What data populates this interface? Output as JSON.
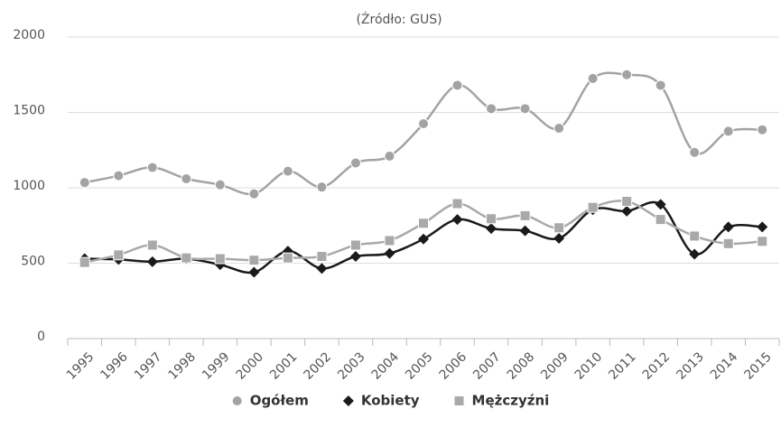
{
  "chart_data": {
    "type": "line",
    "title": "(Źródło: GUS)",
    "categories": [
      "1995",
      "1996",
      "1997",
      "1998",
      "1999",
      "2000",
      "2001",
      "2002",
      "2003",
      "2004",
      "2005",
      "2006",
      "2007",
      "2008",
      "2009",
      "2010",
      "2011",
      "2012",
      "2013",
      "2014",
      "2015"
    ],
    "series": [
      {
        "name": "Ogółem",
        "color": "#a3a3a3",
        "marker": "circle",
        "values": [
          1035,
          1080,
          1135,
          1060,
          1020,
          960,
          1110,
          1005,
          1165,
          1210,
          1425,
          1680,
          1525,
          1525,
          1395,
          1725,
          1750,
          1680,
          1235,
          1375,
          1385
        ]
      },
      {
        "name": "Kobiety",
        "color": "#1a1a1a",
        "marker": "diamond",
        "values": [
          530,
          525,
          510,
          530,
          490,
          440,
          580,
          465,
          545,
          565,
          660,
          790,
          730,
          715,
          665,
          855,
          845,
          890,
          560,
          740,
          740
        ]
      },
      {
        "name": "Mężczyźni",
        "color": "#a9a9a9",
        "marker": "square",
        "values": [
          505,
          555,
          620,
          535,
          530,
          520,
          535,
          545,
          620,
          650,
          765,
          895,
          795,
          815,
          735,
          870,
          910,
          790,
          680,
          630,
          645
        ]
      }
    ],
    "ylim": [
      0,
      2000
    ],
    "yticks": [
      0,
      500,
      1000,
      1500,
      2000
    ],
    "grid": true,
    "legend": "bottom"
  }
}
